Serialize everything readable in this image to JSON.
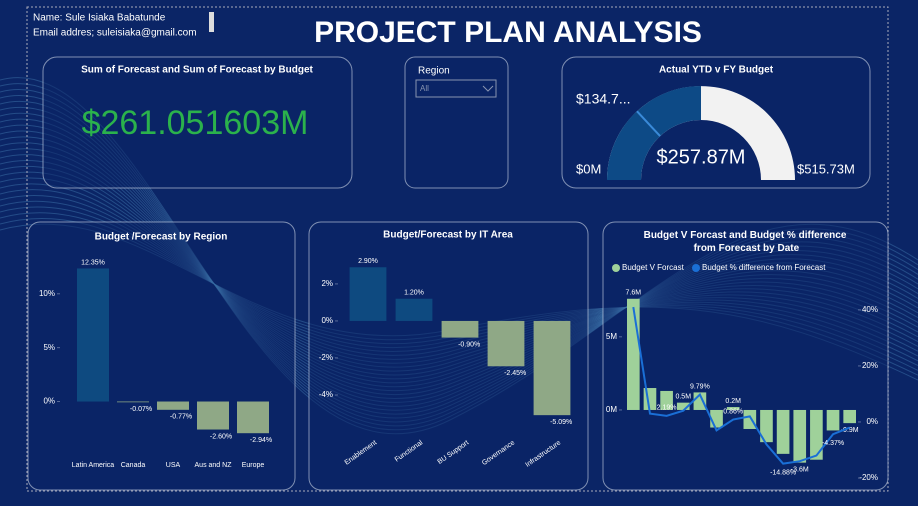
{
  "header": {
    "name": "Name: Sule Isiaka Babatunde",
    "email": "Email addres; suleisiaka@gmail.com",
    "title": "PROJECT PLAN ANALYSIS"
  },
  "kpi": {
    "title": "Sum of Forecast and Sum of Forecast by Budget",
    "value": "$261.051603M"
  },
  "slicer": {
    "label": "Region",
    "selected": "All"
  },
  "chart_data": [
    {
      "type": "gauge",
      "title": "Actual YTD v FY Budget",
      "value": 257.87,
      "value_label": "$257.87M",
      "target": 134.7,
      "target_label": "$134.7...",
      "ylim": [
        0,
        515.73
      ],
      "yticks": [
        {
          "value": 0,
          "label": "$0M"
        },
        {
          "value": 515.73,
          "label": "$515.73M"
        }
      ],
      "color": "#0d4a86",
      "track_color": "#f2f2f2"
    },
    {
      "type": "bar",
      "title": "Budget /Forecast by Region",
      "categories": [
        "Latin America",
        "Canada",
        "USA",
        "Aus and NZ",
        "Europe"
      ],
      "values": [
        12.35,
        -0.07,
        -0.77,
        -2.6,
        -2.94
      ],
      "value_labels": [
        "12.35%",
        "-0.07%",
        "-0.77%",
        "-2.60%",
        "-2.94%"
      ],
      "ylim": [
        -4.5,
        13.6
      ],
      "yticks": [
        {
          "value": 0,
          "label": "0%"
        },
        {
          "value": 5,
          "label": "5%"
        },
        {
          "value": 10,
          "label": "10%"
        }
      ],
      "color_positive": "#0e4a80",
      "color_negative": "#8fa886",
      "rotate_labels": false
    },
    {
      "type": "bar",
      "title": "Budget/Forecast by IT Area",
      "categories": [
        "Enablement",
        "Functional",
        "BU Support",
        "Governance",
        "Infrastructure"
      ],
      "values": [
        2.9,
        1.2,
        -0.9,
        -2.45,
        -5.09
      ],
      "value_labels": [
        "2.90%",
        "1.20%",
        "-0.90%",
        "-2.45%",
        "-5.09%"
      ],
      "ylim": [
        -6,
        3.4
      ],
      "yticks": [
        {
          "value": 2,
          "label": "2%"
        },
        {
          "value": 0,
          "label": "0%"
        },
        {
          "value": -2,
          "label": "-2%"
        },
        {
          "value": -4,
          "label": "-4%"
        }
      ],
      "color_positive": "#0e4a80",
      "color_negative": "#8fa886",
      "rotate_labels": true
    },
    {
      "type": "combo",
      "title": "Budget V Forcast and Budget % difference from Forecast by Date",
      "categories": [
        null,
        null,
        null,
        null,
        null,
        null,
        null,
        null,
        null,
        null,
        null,
        null,
        null,
        null
      ],
      "series": [
        {
          "name": "Budget V Forcast",
          "color": "#9fd19a",
          "values": [
            7.6,
            1.5,
            1.3,
            0.5,
            1.2,
            -1.2,
            0.2,
            -1.3,
            -2.2,
            -3.0,
            -3.6,
            -3.4,
            -1.4,
            -0.9
          ],
          "value_labels": [
            "7.6M",
            null,
            null,
            "0.5M",
            null,
            null,
            "0.2M",
            null,
            null,
            null,
            "-3.6M",
            null,
            null,
            "-0.9M"
          ]
        },
        {
          "name": "Budget % difference from Forecast",
          "color": "#1a6fd6",
          "axis": "y2",
          "values": [
            41,
            3,
            2.19,
            4,
            9.79,
            -3,
            0.86,
            2,
            -8,
            -14.88,
            -14,
            -12,
            -4.37,
            -2
          ],
          "value_labels": [
            null,
            null,
            "2.19%",
            null,
            "9.79%",
            null,
            "0.86%",
            null,
            null,
            "-14.88%",
            null,
            null,
            "-4.37%",
            null
          ]
        }
      ],
      "ylim": [
        -4.65,
        8.2
      ],
      "yticks": [
        {
          "value": 0,
          "label": "0M"
        },
        {
          "value": 5,
          "label": "5M"
        }
      ],
      "y2lim": [
        -20,
        47.1
      ],
      "y2ticks": [
        {
          "value": -20,
          "label": "-20%"
        },
        {
          "value": 0,
          "label": "0%"
        },
        {
          "value": 20,
          "label": "20%"
        },
        {
          "value": 40,
          "label": "40%"
        }
      ]
    }
  ]
}
